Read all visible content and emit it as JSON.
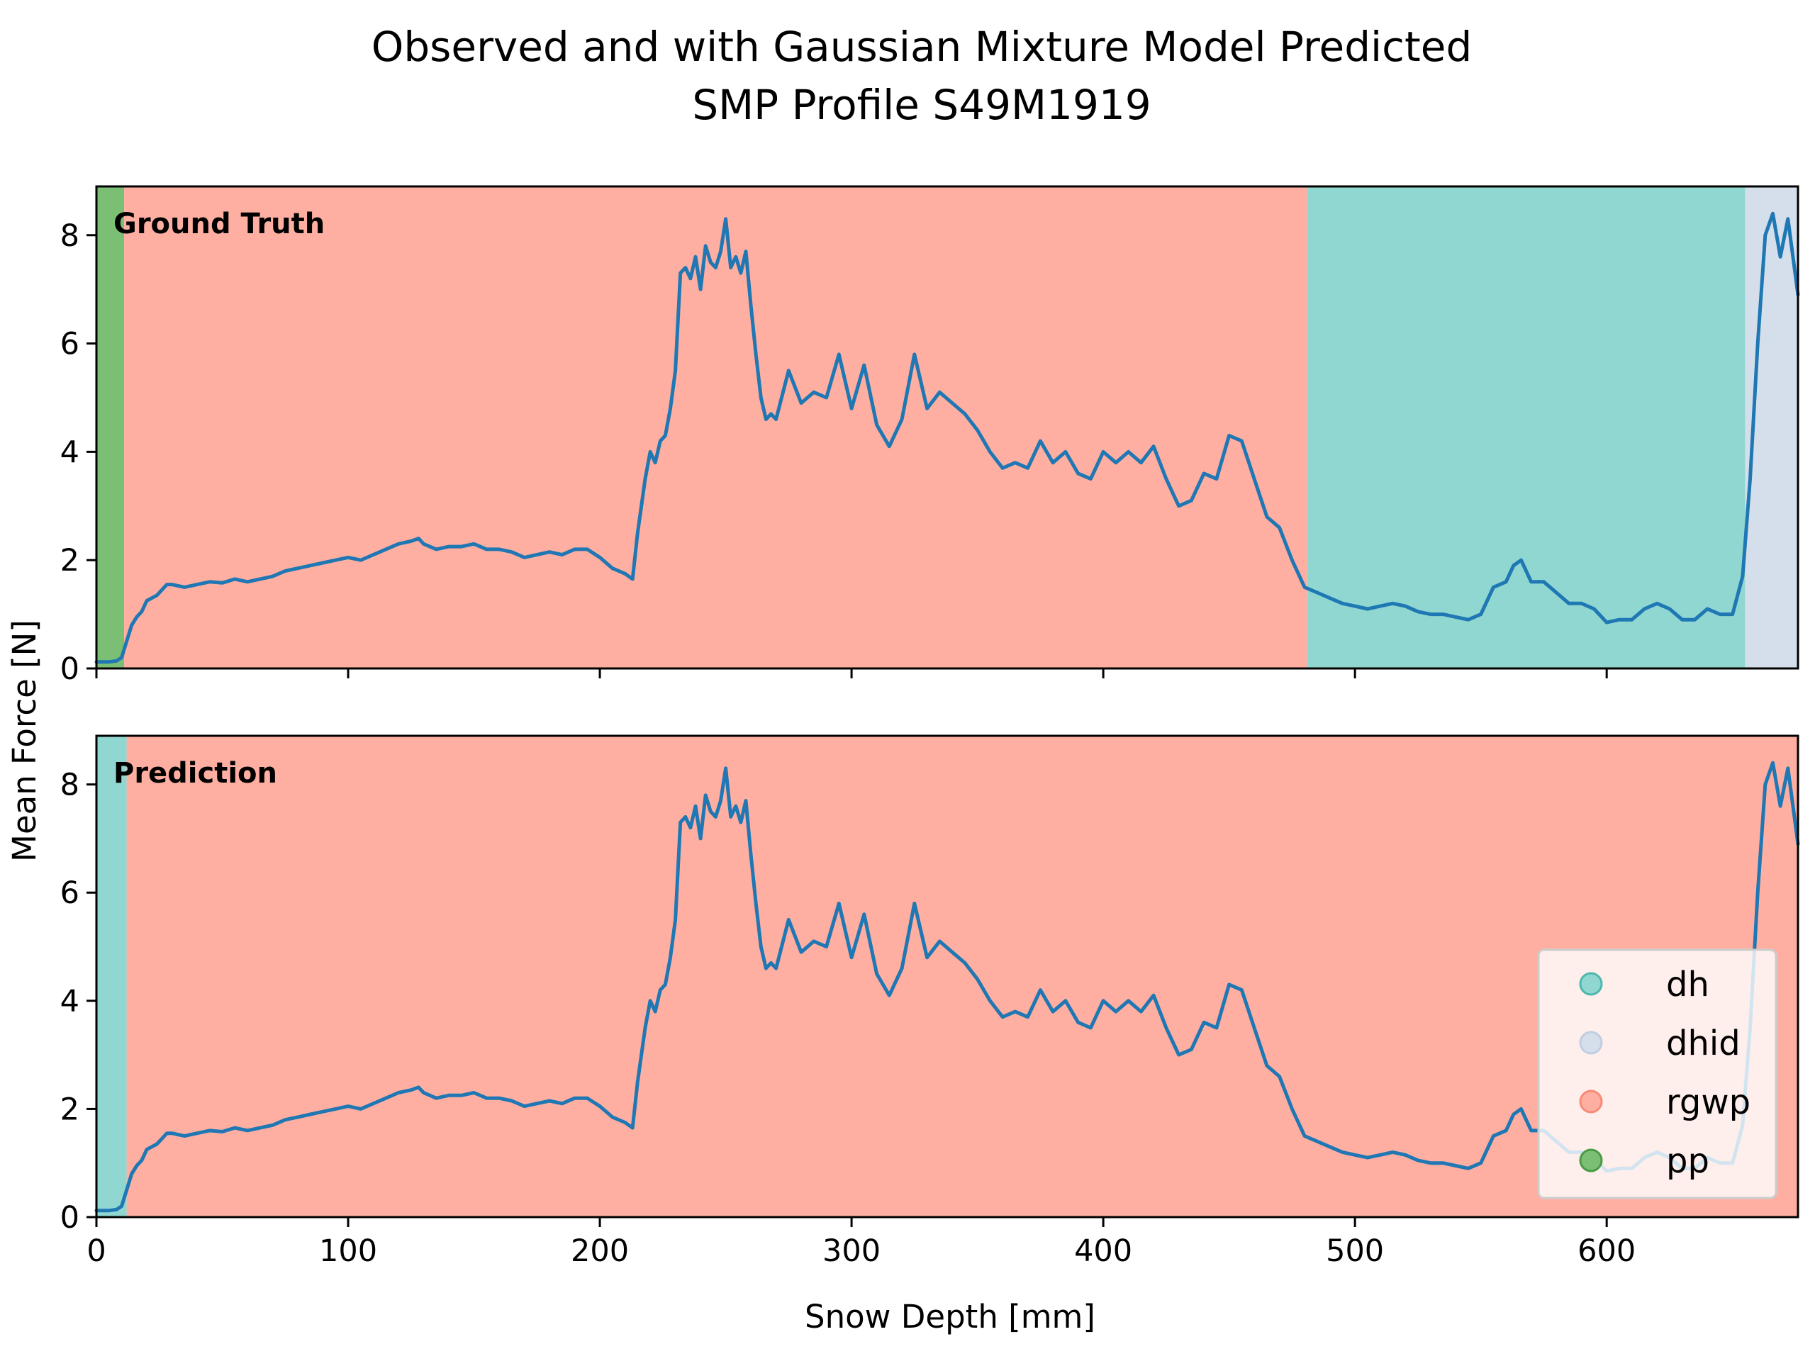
{
  "figure": {
    "title_line1": "Observed and with Gaussian Mixture Model Predicted",
    "title_line2": "SMP Profile S49M1919"
  },
  "chart_data": {
    "type": "line",
    "xlabel": "Snow Depth [mm]",
    "ylabel": "Mean Force [N]",
    "xlim": [
      0,
      676
    ],
    "ylim": [
      0,
      8.9
    ],
    "x_ticks": [
      0,
      100,
      200,
      300,
      400,
      500,
      600
    ],
    "y_ticks": [
      0,
      2,
      4,
      6,
      8
    ],
    "grid": false,
    "series": [
      {
        "x": [
          0,
          5,
          8,
          10,
          12,
          14,
          16,
          18,
          20,
          22,
          24,
          26,
          28,
          30,
          35,
          40,
          45,
          50,
          55,
          60,
          65,
          70,
          75,
          80,
          85,
          90,
          95,
          100,
          105,
          110,
          115,
          120,
          125,
          128,
          130,
          135,
          140,
          145,
          150,
          155,
          160,
          165,
          170,
          175,
          180,
          185,
          190,
          195,
          200,
          205,
          210,
          213,
          215,
          218,
          220,
          222,
          224,
          226,
          228,
          230,
          232,
          234,
          236,
          238,
          240,
          242,
          244,
          246,
          248,
          250,
          252,
          254,
          256,
          258,
          260,
          262,
          264,
          266,
          268,
          270,
          275,
          280,
          285,
          290,
          295,
          300,
          305,
          310,
          315,
          320,
          325,
          330,
          335,
          340,
          345,
          350,
          355,
          360,
          365,
          370,
          375,
          380,
          385,
          390,
          395,
          400,
          405,
          410,
          415,
          420,
          425,
          430,
          435,
          440,
          445,
          450,
          455,
          460,
          465,
          470,
          475,
          480,
          485,
          490,
          495,
          500,
          505,
          510,
          515,
          520,
          525,
          530,
          535,
          540,
          545,
          550,
          555,
          560,
          563,
          566,
          570,
          575,
          580,
          585,
          590,
          595,
          600,
          605,
          610,
          615,
          620,
          625,
          630,
          635,
          640,
          645,
          650,
          654,
          657,
          660,
          663,
          666,
          669,
          672,
          676
        ],
        "values": [
          0.12,
          0.12,
          0.14,
          0.2,
          0.5,
          0.8,
          0.95,
          1.05,
          1.25,
          1.3,
          1.35,
          1.45,
          1.55,
          1.55,
          1.5,
          1.55,
          1.6,
          1.58,
          1.65,
          1.6,
          1.65,
          1.7,
          1.8,
          1.85,
          1.9,
          1.95,
          2.0,
          2.05,
          2.0,
          2.1,
          2.2,
          2.3,
          2.35,
          2.4,
          2.3,
          2.2,
          2.25,
          2.25,
          2.3,
          2.2,
          2.2,
          2.15,
          2.05,
          2.1,
          2.15,
          2.1,
          2.2,
          2.2,
          2.05,
          1.85,
          1.75,
          1.65,
          2.5,
          3.5,
          4.0,
          3.8,
          4.2,
          4.3,
          4.8,
          5.5,
          7.3,
          7.4,
          7.2,
          7.6,
          7.0,
          7.8,
          7.5,
          7.4,
          7.7,
          8.3,
          7.4,
          7.6,
          7.3,
          7.7,
          6.7,
          5.8,
          5.0,
          4.6,
          4.7,
          4.6,
          5.5,
          4.9,
          5.1,
          5.0,
          5.8,
          4.8,
          5.6,
          4.5,
          4.1,
          4.6,
          5.8,
          4.8,
          5.1,
          4.9,
          4.7,
          4.4,
          4.0,
          3.7,
          3.8,
          3.7,
          4.2,
          3.8,
          4.0,
          3.6,
          3.5,
          4.0,
          3.8,
          4.0,
          3.8,
          4.1,
          3.5,
          3.0,
          3.1,
          3.6,
          3.5,
          4.3,
          4.2,
          3.5,
          2.8,
          2.6,
          2.0,
          1.5,
          1.4,
          1.3,
          1.2,
          1.15,
          1.1,
          1.15,
          1.2,
          1.15,
          1.05,
          1.0,
          1.0,
          0.95,
          0.9,
          1.0,
          1.5,
          1.6,
          1.9,
          2.0,
          1.6,
          1.6,
          1.4,
          1.2,
          1.2,
          1.1,
          0.85,
          0.9,
          0.9,
          1.1,
          1.2,
          1.1,
          0.9,
          0.9,
          1.1,
          1.0,
          1.0,
          1.7,
          3.5,
          6.0,
          8.0,
          8.4,
          7.6,
          8.3,
          6.9
        ]
      }
    ],
    "panels": [
      {
        "label": "Ground Truth",
        "segments": [
          {
            "class": "pp",
            "x0": 0,
            "x1": 11
          },
          {
            "class": "rgwp",
            "x0": 11,
            "x1": 481
          },
          {
            "class": "dh",
            "x0": 481,
            "x1": 655
          },
          {
            "class": "dhid",
            "x0": 655,
            "x1": 676
          }
        ]
      },
      {
        "label": "Prediction",
        "segments": [
          {
            "class": "dh",
            "x0": 0,
            "x1": 12
          },
          {
            "class": "rgwp",
            "x0": 12,
            "x1": 676
          }
        ]
      }
    ],
    "legend": {
      "placement": "lower-right",
      "entries": [
        {
          "label": "dh",
          "class": "dh"
        },
        {
          "label": "dhid",
          "class": "dhid"
        },
        {
          "label": "rgwp",
          "class": "rgwp"
        },
        {
          "label": "pp",
          "class": "pp"
        }
      ]
    },
    "class_colors": {
      "dh": "#8fd7d0",
      "dhid": "#d5dfec",
      "rgwp": "#ffafa2",
      "pp": "#7bbf74"
    },
    "marker_colors": {
      "dh": "#4cb8ad",
      "dhid": "#c1cee2",
      "rgwp": "#f88a78",
      "pp": "#4a9a44"
    },
    "line_color": "#1f77b4"
  }
}
